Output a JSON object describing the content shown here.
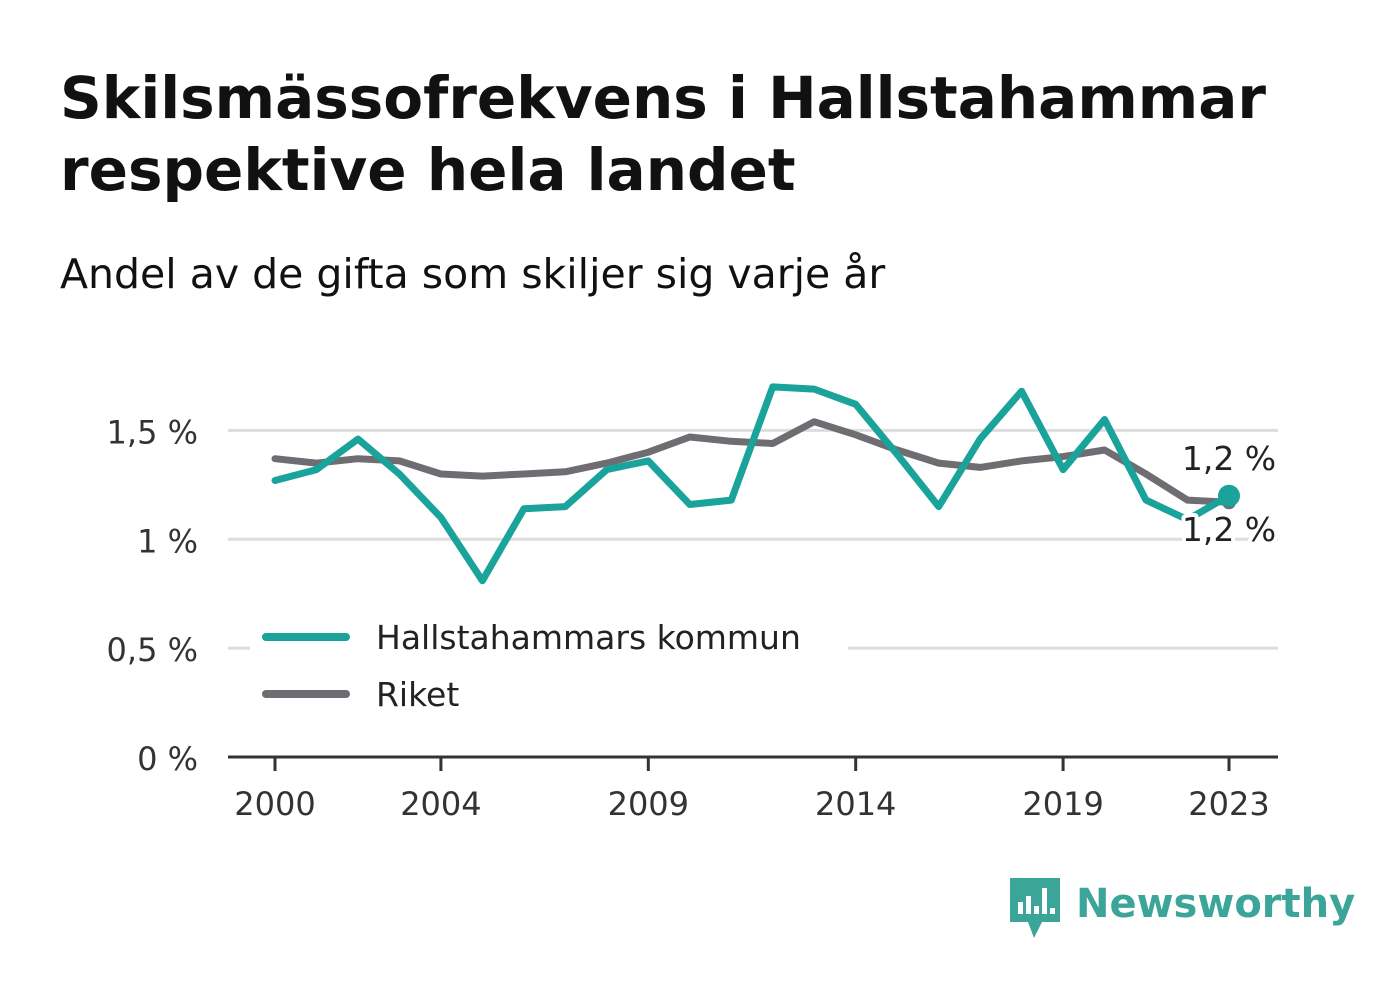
{
  "title": "Skilsmässofrekvens i Hallstahammar respektive hela landet",
  "subtitle": "Andel av de gifta som skiljer sig varje år",
  "brand": {
    "name": "Newsworthy",
    "icon": "bar-chart-speech-bubble-icon",
    "color": "#3ba59a"
  },
  "colors": {
    "kommun": "#1aa39a",
    "riket": "#6f6d72",
    "grid": "#dddddd",
    "axis": "#333333"
  },
  "chart_data": {
    "type": "line",
    "x": [
      2000,
      2001,
      2002,
      2003,
      2004,
      2005,
      2006,
      2007,
      2008,
      2009,
      2010,
      2011,
      2012,
      2013,
      2014,
      2015,
      2016,
      2017,
      2018,
      2019,
      2020,
      2021,
      2022,
      2023
    ],
    "series": [
      {
        "name": "Hallstahammars kommun",
        "color": "#1aa39a",
        "values": [
          1.27,
          1.32,
          1.46,
          1.3,
          1.1,
          0.81,
          1.14,
          1.15,
          1.32,
          1.36,
          1.16,
          1.18,
          1.7,
          1.69,
          1.62,
          1.39,
          1.15,
          1.46,
          1.68,
          1.32,
          1.55,
          1.18,
          1.09,
          1.2
        ]
      },
      {
        "name": "Riket",
        "color": "#6f6d72",
        "values": [
          1.37,
          1.35,
          1.37,
          1.36,
          1.3,
          1.29,
          1.3,
          1.31,
          1.35,
          1.4,
          1.47,
          1.45,
          1.44,
          1.54,
          1.48,
          1.41,
          1.35,
          1.33,
          1.36,
          1.38,
          1.41,
          1.3,
          1.18,
          1.17
        ]
      }
    ],
    "x_ticks": [
      "2000",
      "2004",
      "2009",
      "2014",
      "2019",
      "2023"
    ],
    "y_ticks": [
      "0 %",
      "0,5 %",
      "1 %",
      "1,5 %"
    ],
    "y_tick_values": [
      0,
      0.5,
      1,
      1.5
    ],
    "ylim": [
      0,
      1.75
    ],
    "xlim": [
      2000,
      2023
    ],
    "end_labels": [
      "1,2 %",
      "1,2 %"
    ],
    "legend": [
      "Hallstahammars kommun",
      "Riket"
    ],
    "legend_position": "bottom-left",
    "grid": "horizontal"
  }
}
